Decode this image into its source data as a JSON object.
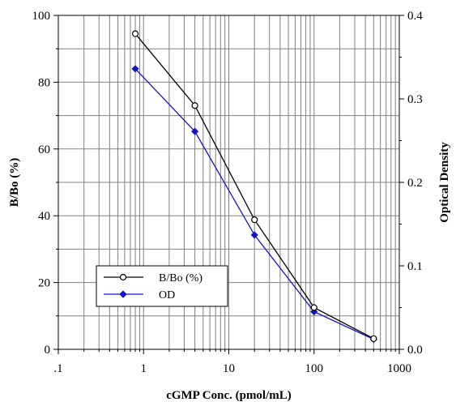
{
  "chart_data": {
    "type": "line",
    "xlabel": "cGMP Conc. (pmol/mL)",
    "ylabel": "B/Bo (%)",
    "y2label": "Optical Density",
    "x_scale": "log",
    "xlim": [
      0.1,
      1000
    ],
    "ylim": [
      0,
      100
    ],
    "y2lim": [
      0.0,
      0.4
    ],
    "x_ticks": [
      ".1",
      "1",
      "10",
      "100",
      "1000"
    ],
    "y_ticks": [
      "0",
      "20",
      "40",
      "60",
      "80",
      "100"
    ],
    "y2_ticks": [
      "0.0",
      "0.1",
      "0.2",
      "0.3",
      "0.4"
    ],
    "grid": true,
    "legend_position": "bottom-left",
    "series": [
      {
        "name": "B/Bo (%)",
        "axis": "left",
        "color": "#000000",
        "marker": "open-circle",
        "x": [
          0.8,
          4,
          20,
          100,
          500
        ],
        "y": [
          94.5,
          73,
          38.8,
          12.5,
          3.2
        ]
      },
      {
        "name": "OD",
        "axis": "right",
        "color": "#1414c8",
        "marker": "filled-diamond",
        "x": [
          0.8,
          4,
          20,
          100,
          500
        ],
        "y": [
          0.336,
          0.261,
          0.137,
          0.045,
          0.012
        ]
      }
    ]
  }
}
